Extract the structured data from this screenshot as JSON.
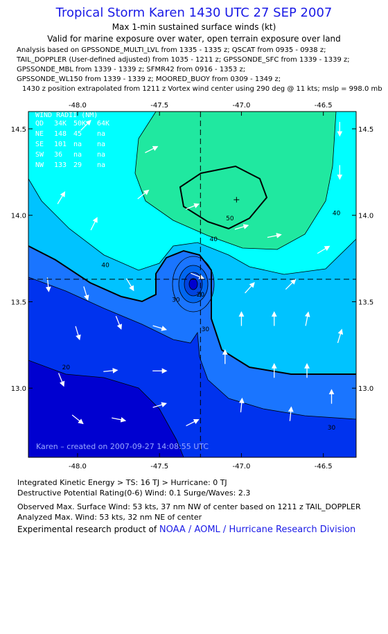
{
  "header": {
    "title": "Tropical Storm Karen 1430 UTC 27 SEP 2007",
    "subtitle1": "Max 1-min sustained surface winds (kt)",
    "subtitle2": "Valid for marine exposure over water, open terrain exposure over land"
  },
  "analysis_lines": [
    "Analysis based on  GPSSONDE_MULTI_LVL from 1335 - 1335 z;  QSCAT from 0935 - 0938 z;",
    "TAIL_DOPPLER (User-defined adjusted) from 1035 - 1211 z;  GPSSONDE_SFC from 1339 - 1339 z;",
    "GPSSONDE_MBL from 1339 - 1339 z;  SFMR42 from 0916 - 1353 z;",
    "GPSSONDE_WL150 from 1339 - 1339 z;  MOORED_BUOY from 0309 - 1349 z;",
    "1430 z position extrapolated from 1211 z Vortex wind center using 290 deg @ 11 kts; mslp = 998.0 mb"
  ],
  "wind_radii": {
    "title": "WIND RADII (NM)",
    "header": [
      "QD",
      "34K",
      "50K",
      "64K"
    ],
    "rows": [
      [
        "NE",
        "148",
        "45",
        "na"
      ],
      [
        "SE",
        "101",
        "na",
        "na"
      ],
      [
        "SW",
        "36",
        "na",
        "na"
      ],
      [
        "NW",
        "133",
        "29",
        "na"
      ]
    ]
  },
  "credit": "Karen – created on 2007-09-27 14:08:55 UTC",
  "colors": {
    "level_lt20": "#0000d0",
    "level_20": "#0033ee",
    "level_30": "#1a75ff",
    "level_34": "#00c3ff",
    "level_40": "#00ffff",
    "level_50": "#20e8a0",
    "contour": "#000000",
    "title": "#1a1ae6"
  },
  "chart_data": {
    "type": "contour",
    "xlim": [
      -48.3,
      -46.3
    ],
    "ylim": [
      12.6,
      14.6
    ],
    "x_ticks": [
      -48.0,
      -47.5,
      -47.0,
      -46.5
    ],
    "y_ticks": [
      13.0,
      13.5,
      14.0,
      14.5
    ],
    "x_tick_labels": [
      "-48.0",
      "-47.5",
      "-47.0",
      "-46.5"
    ],
    "y_tick_labels": [
      "13.0",
      "13.5",
      "14.0",
      "14.5"
    ],
    "storm_center": [
      -47.25,
      13.63
    ],
    "max_wind_location": [
      -47.03,
      14.09
    ],
    "contour_labels": [
      {
        "text": "50",
        "lon": -47.07,
        "lat": 13.97
      },
      {
        "text": "40",
        "lon": -47.17,
        "lat": 13.85
      },
      {
        "text": "40",
        "lon": -47.83,
        "lat": 13.7
      },
      {
        "text": "40",
        "lon": -46.42,
        "lat": 14.0
      },
      {
        "text": "30",
        "lon": -47.4,
        "lat": 13.5
      },
      {
        "text": "30",
        "lon": -47.22,
        "lat": 13.33
      },
      {
        "text": "30",
        "lon": -46.45,
        "lat": 12.76
      },
      {
        "text": "20",
        "lon": -47.25,
        "lat": 13.53
      },
      {
        "text": "20",
        "lon": -48.07,
        "lat": 13.11
      }
    ],
    "wind_vectors": [
      {
        "lon": -47.95,
        "lat": 14.52,
        "u": 1,
        "v": 1
      },
      {
        "lon": -47.55,
        "lat": 14.38,
        "u": 1,
        "v": 0.5
      },
      {
        "lon": -47.6,
        "lat": 14.12,
        "u": 1,
        "v": 0.8
      },
      {
        "lon": -47.3,
        "lat": 14.05,
        "u": 1,
        "v": 0.4
      },
      {
        "lon": -48.1,
        "lat": 14.1,
        "u": 0.6,
        "v": 1
      },
      {
        "lon": -47.9,
        "lat": 13.95,
        "u": 0.5,
        "v": 1
      },
      {
        "lon": -47.0,
        "lat": 13.93,
        "u": 1,
        "v": 0.3
      },
      {
        "lon": -46.8,
        "lat": 13.88,
        "u": 1,
        "v": 0.2
      },
      {
        "lon": -46.5,
        "lat": 13.8,
        "u": 1,
        "v": 0.6
      },
      {
        "lon": -46.4,
        "lat": 14.25,
        "u": 0,
        "v": -1
      },
      {
        "lon": -46.4,
        "lat": 14.5,
        "u": 0,
        "v": -1
      },
      {
        "lon": -46.7,
        "lat": 13.6,
        "u": 1,
        "v": 1
      },
      {
        "lon": -46.95,
        "lat": 13.58,
        "u": 0.9,
        "v": 1
      },
      {
        "lon": -48.18,
        "lat": 13.6,
        "u": 0.1,
        "v": -1
      },
      {
        "lon": -47.95,
        "lat": 13.55,
        "u": 0.3,
        "v": -1
      },
      {
        "lon": -47.68,
        "lat": 13.6,
        "u": 0.6,
        "v": -1
      },
      {
        "lon": -47.75,
        "lat": 13.38,
        "u": 0.4,
        "v": -1
      },
      {
        "lon": -48.0,
        "lat": 13.32,
        "u": 0.3,
        "v": -1
      },
      {
        "lon": -47.5,
        "lat": 13.35,
        "u": 1,
        "v": -0.3
      },
      {
        "lon": -47.0,
        "lat": 13.4,
        "u": 0,
        "v": 1
      },
      {
        "lon": -46.8,
        "lat": 13.4,
        "u": 0,
        "v": 1
      },
      {
        "lon": -46.6,
        "lat": 13.4,
        "u": 0.2,
        "v": 1
      },
      {
        "lon": -46.4,
        "lat": 13.3,
        "u": 0.3,
        "v": 1
      },
      {
        "lon": -47.1,
        "lat": 13.18,
        "u": 0,
        "v": 1
      },
      {
        "lon": -46.8,
        "lat": 13.1,
        "u": 0,
        "v": 1
      },
      {
        "lon": -46.6,
        "lat": 13.1,
        "u": 0,
        "v": 1
      },
      {
        "lon": -46.45,
        "lat": 12.95,
        "u": 0,
        "v": 1
      },
      {
        "lon": -47.0,
        "lat": 12.9,
        "u": 0.1,
        "v": 1
      },
      {
        "lon": -46.7,
        "lat": 12.85,
        "u": 0.1,
        "v": 1
      },
      {
        "lon": -47.5,
        "lat": 13.1,
        "u": 1,
        "v": 0
      },
      {
        "lon": -47.8,
        "lat": 13.1,
        "u": 1,
        "v": 0.1
      },
      {
        "lon": -48.1,
        "lat": 13.05,
        "u": 0.4,
        "v": -1
      },
      {
        "lon": -47.5,
        "lat": 12.9,
        "u": 1,
        "v": 0.3
      },
      {
        "lon": -48.0,
        "lat": 12.82,
        "u": 1,
        "v": -0.8
      },
      {
        "lon": -47.75,
        "lat": 12.82,
        "u": 1,
        "v": -0.2
      },
      {
        "lon": -47.3,
        "lat": 12.8,
        "u": 1,
        "v": 0.5
      },
      {
        "lon": -47.27,
        "lat": 13.65,
        "u": 1,
        "v": -0.4
      }
    ]
  },
  "footer": {
    "ike": "Integrated Kinetic Energy > TS: 16 TJ   > Hurricane: 0 TJ",
    "dpr": "Destructive Potential Rating(0-6)   Wind: 0.1 Surge/Waves: 2.3",
    "observed": "Observed Max. Surface Wind: 53 kts, 37 nm NW of center based on 1211 z TAIL_DOPPLER",
    "analyzed": "Analyzed Max. Wind: 53 kts, 32 nm NE of center",
    "product_prefix": "Experimental research product of ",
    "product_org": "NOAA / AOML / Hurricane Research Division"
  }
}
